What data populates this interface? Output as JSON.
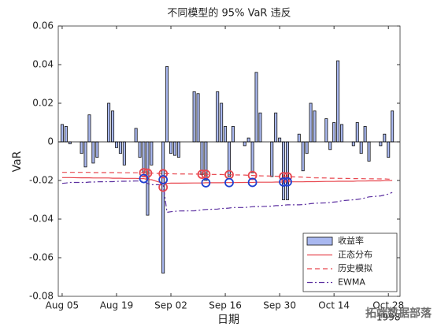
{
  "chart_data": {
    "type": "bar",
    "title": "不同模型的 95% VaR 违反",
    "x_label": "日期",
    "y_label": "VaR",
    "x": [
      217,
      218,
      219,
      222,
      223,
      224,
      225,
      226,
      229,
      230,
      231,
      232,
      233,
      236,
      237,
      238,
      239,
      240,
      243,
      244,
      245,
      246,
      247,
      251,
      252,
      253,
      254,
      257,
      258,
      259,
      260,
      261,
      264,
      265,
      266,
      267,
      268,
      271,
      272,
      273,
      274,
      275,
      278,
      279,
      280,
      281,
      282,
      285,
      286,
      287,
      288,
      289,
      292,
      293,
      294,
      295,
      296,
      299,
      300,
      301,
      302
    ],
    "xlim": [
      216,
      304
    ],
    "xticks": [
      {
        "value": 217,
        "label": "Aug 05"
      },
      {
        "value": 231,
        "label": "Aug 19"
      },
      {
        "value": 245,
        "label": "Sep 02"
      },
      {
        "value": 259,
        "label": "Sep 16"
      },
      {
        "value": 273,
        "label": "Sep 30"
      },
      {
        "value": 287,
        "label": "Oct 14"
      },
      {
        "value": 301,
        "label": "Oct 28"
      }
    ],
    "year_label": "1998",
    "ylim": [
      -0.08,
      0.06
    ],
    "yticks": [
      -0.08,
      -0.06,
      -0.04,
      -0.02,
      0,
      0.02,
      0.04,
      0.06
    ],
    "legend": "lower right",
    "series": [
      {
        "name": "收益率",
        "kind": "bar",
        "color": "#a9b8f0",
        "values": [
          0.009,
          0.008,
          -0.001,
          -0.006,
          -0.013,
          0.014,
          -0.011,
          -0.008,
          0.02,
          0.016,
          -0.003,
          -0.006,
          -0.012,
          0.007,
          -0.008,
          -0.016,
          -0.038,
          -0.012,
          -0.068,
          0.039,
          -0.006,
          -0.007,
          -0.008,
          0.026,
          0.025,
          -0.017,
          -0.02,
          0.026,
          0.02,
          0.008,
          -0.018,
          0.008,
          -0.002,
          0.002,
          -0.016,
          0.036,
          0.015,
          -0.018,
          0.015,
          0.002,
          -0.03,
          -0.03,
          0.004,
          -0.015,
          -0.006,
          0.02,
          0.016,
          0.012,
          -0.004,
          0.01,
          0.042,
          0.009,
          -0.002,
          0.01,
          -0.006,
          0.008,
          -0.01,
          -0.002,
          0.004,
          -0.008,
          0.016
        ]
      },
      {
        "name": "正态分布",
        "kind": "line",
        "color": "#e8474f",
        "dash": "none",
        "values": [
          -0.0185,
          -0.0185,
          -0.0185,
          -0.0186,
          -0.0186,
          -0.0186,
          -0.0187,
          -0.0187,
          -0.0187,
          -0.0188,
          -0.0188,
          -0.0188,
          -0.0189,
          -0.0189,
          -0.019,
          -0.019,
          -0.0195,
          -0.0196,
          -0.0215,
          -0.0215,
          -0.0214,
          -0.0214,
          -0.0214,
          -0.0213,
          -0.0213,
          -0.0213,
          -0.0212,
          -0.0212,
          -0.0212,
          -0.0211,
          -0.0211,
          -0.0211,
          -0.021,
          -0.021,
          -0.021,
          -0.0209,
          -0.0209,
          -0.0209,
          -0.0208,
          -0.0208,
          -0.0208,
          -0.0207,
          -0.0207,
          -0.0207,
          -0.0206,
          -0.0206,
          -0.0206,
          -0.0205,
          -0.0205,
          -0.0205,
          -0.0204,
          -0.0204,
          -0.0204,
          -0.0203,
          -0.0203,
          -0.0203,
          -0.0202,
          -0.0202,
          -0.0201,
          -0.0201,
          -0.02
        ]
      },
      {
        "name": "历史模拟",
        "kind": "line",
        "color": "#e8474f",
        "dash": "6 4",
        "values": [
          -0.0158,
          -0.0158,
          -0.0158,
          -0.0158,
          -0.0158,
          -0.0158,
          -0.0159,
          -0.0159,
          -0.0159,
          -0.0159,
          -0.0159,
          -0.016,
          -0.016,
          -0.016,
          -0.016,
          -0.016,
          -0.0162,
          -0.0162,
          -0.0165,
          -0.0165,
          -0.0165,
          -0.0166,
          -0.0166,
          -0.0167,
          -0.0167,
          -0.0168,
          -0.0168,
          -0.0169,
          -0.0169,
          -0.017,
          -0.017,
          -0.0171,
          -0.0172,
          -0.0173,
          -0.0174,
          -0.0175,
          -0.0176,
          -0.0177,
          -0.0178,
          -0.0179,
          -0.018,
          -0.0181,
          -0.0182,
          -0.0183,
          -0.0184,
          -0.0185,
          -0.0186,
          -0.0187,
          -0.0188,
          -0.0188,
          -0.0189,
          -0.0189,
          -0.019,
          -0.019,
          -0.019,
          -0.0191,
          -0.0191,
          -0.0192,
          -0.0192,
          -0.0193,
          -0.0193
        ]
      },
      {
        "name": "EWMA",
        "kind": "line",
        "color": "#5b2fa0",
        "dash": "7 3 2 3",
        "values": [
          -0.0215,
          -0.0213,
          -0.021,
          -0.021,
          -0.021,
          -0.0208,
          -0.0208,
          -0.0207,
          -0.0206,
          -0.0206,
          -0.0205,
          -0.0204,
          -0.0204,
          -0.0203,
          -0.0203,
          -0.0205,
          -0.0215,
          -0.0222,
          -0.0222,
          -0.0365,
          -0.0362,
          -0.036,
          -0.0358,
          -0.0357,
          -0.0355,
          -0.0352,
          -0.035,
          -0.0348,
          -0.0345,
          -0.0345,
          -0.0343,
          -0.034,
          -0.034,
          -0.0338,
          -0.0336,
          -0.0335,
          -0.0335,
          -0.0333,
          -0.033,
          -0.033,
          -0.0328,
          -0.0326,
          -0.0326,
          -0.0325,
          -0.0323,
          -0.032,
          -0.0318,
          -0.0316,
          -0.0314,
          -0.0312,
          -0.031,
          -0.0305,
          -0.03,
          -0.0298,
          -0.0295,
          -0.029,
          -0.0285,
          -0.028,
          -0.0275,
          -0.027,
          -0.0262
        ]
      }
    ],
    "violations": [
      {
        "color": "#e8474f",
        "x": [
          238,
          239,
          243,
          243,
          253,
          254,
          260,
          266,
          274,
          275
        ],
        "values": [
          -0.016,
          -0.0162,
          -0.0165,
          -0.0235,
          -0.0168,
          -0.0168,
          -0.017,
          -0.0174,
          -0.018,
          -0.0181
        ]
      },
      {
        "color": "#2040d0",
        "x": [
          238,
          243,
          254,
          260,
          266,
          274,
          275
        ],
        "values": [
          -0.019,
          -0.0196,
          -0.0212,
          -0.0211,
          -0.021,
          -0.0208,
          -0.0207
        ]
      }
    ],
    "watermark": "拓端数据部落"
  }
}
